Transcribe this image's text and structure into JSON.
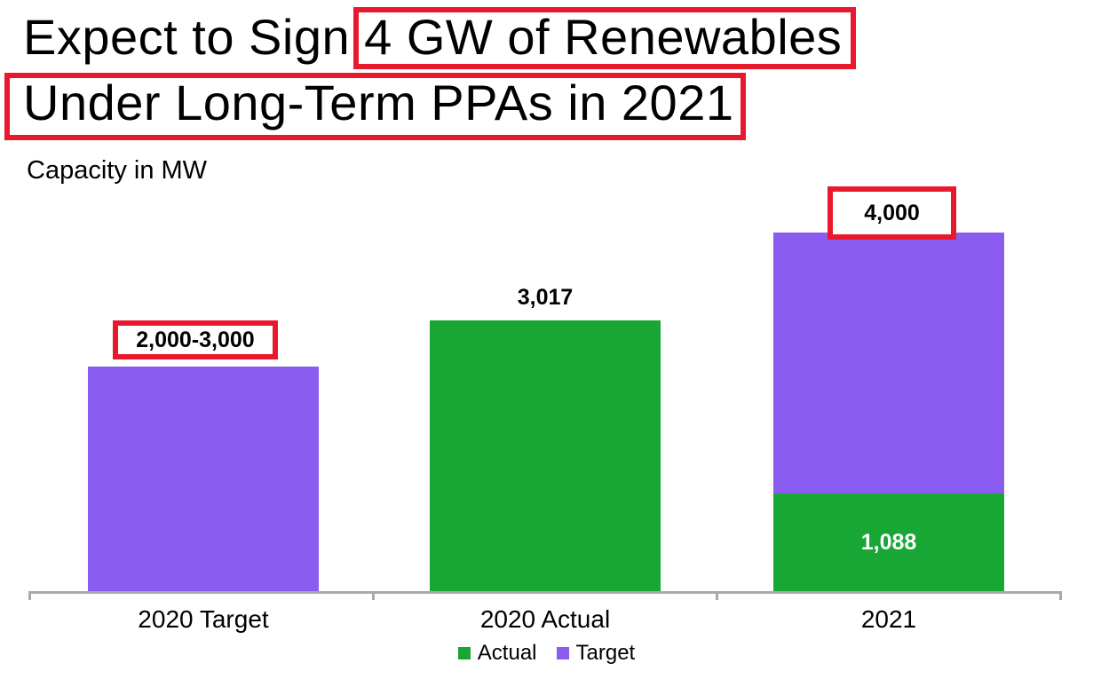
{
  "title": {
    "line1_prefix": "Expect to Sign ",
    "line1_highlight": "4 GW of Renewables",
    "line2": "Under Long-Term PPAs in 2021"
  },
  "subtitle": "Capacity in MW",
  "colors": {
    "actual_green": "#18A635",
    "target_purple": "#8B5CF0",
    "highlight_red": "#E8192C",
    "axis_gray": "#A9A9A9",
    "segment_label_white": "#FFFFFF"
  },
  "chart_data": {
    "type": "bar",
    "stacked": true,
    "unit": "MW",
    "axis_title": "Capacity in MW",
    "categories": [
      "2020 Target",
      "2020 Actual",
      "2021"
    ],
    "series": [
      {
        "name": "Actual",
        "color": "#18A635"
      },
      {
        "name": "Target",
        "color": "#8B5CF0"
      }
    ],
    "bars": [
      {
        "category": "2020 Target",
        "total_label": "2,000-3,000",
        "label_highlighted": true,
        "range": [
          2000,
          3000
        ],
        "segments": [
          {
            "series": "Target",
            "value": 2500
          }
        ]
      },
      {
        "category": "2020 Actual",
        "total_label": "3,017",
        "label_highlighted": false,
        "segments": [
          {
            "series": "Actual",
            "value": 3017
          }
        ]
      },
      {
        "category": "2021",
        "total_label": "4,000",
        "label_highlighted": true,
        "segments": [
          {
            "series": "Actual",
            "value": 1088,
            "label": "1,088"
          },
          {
            "series": "Target",
            "value": 2912
          }
        ]
      }
    ],
    "ylim": [
      0,
      4000
    ],
    "gridlines": false,
    "legend_position": "bottom",
    "title_annotations_highlighted": [
      "4 GW of Renewables",
      "Under Long-Term PPAs in 2021"
    ]
  },
  "legend": {
    "items": [
      {
        "label": "Actual",
        "color": "#18A635"
      },
      {
        "label": "Target",
        "color": "#8B5CF0"
      }
    ]
  }
}
